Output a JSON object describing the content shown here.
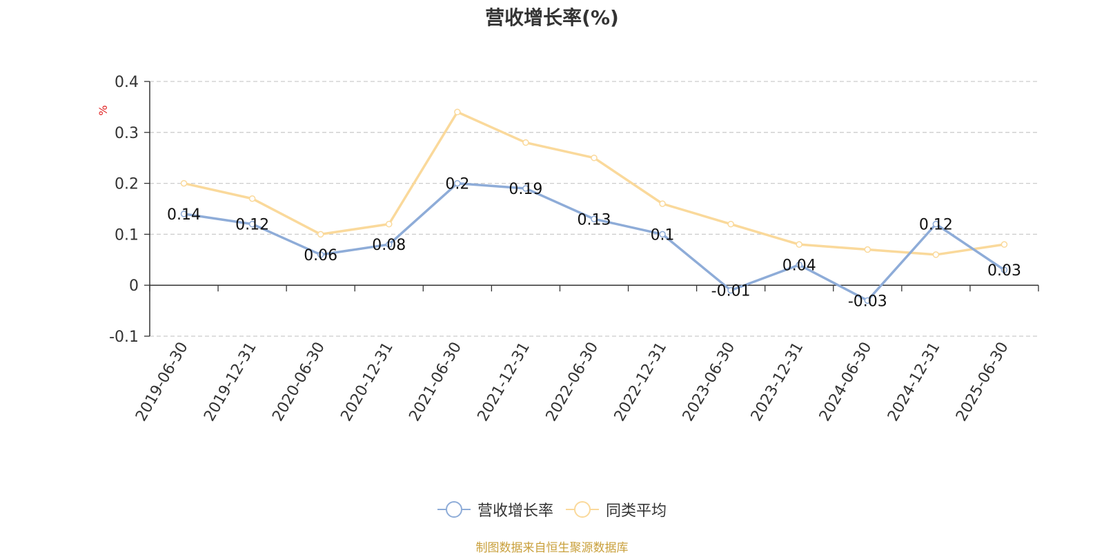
{
  "title": "营收增长率(%)",
  "source_text": "制图数据来自恒生聚源数据库",
  "colors": {
    "series_1": "#8eacd8",
    "series_2": "#fad99b",
    "axis": "#333333",
    "grid": "#cccccc",
    "unit": "#e02020",
    "source": "#c9a03c"
  },
  "chart_data": {
    "type": "line",
    "title": "营收增长率(%)",
    "ylabel": "%",
    "xlabel": "",
    "x": [
      "2019-06-30",
      "2019-12-31",
      "2020-06-30",
      "2020-12-31",
      "2021-06-30",
      "2021-12-31",
      "2022-06-30",
      "2022-12-31",
      "2023-06-30",
      "2023-12-31",
      "2024-06-30",
      "2024-12-31",
      "2025-06-30"
    ],
    "ylim": [
      -0.1,
      0.4
    ],
    "yticks": [
      "-0.1",
      "0",
      "0.1",
      "0.2",
      "0.3",
      "0.4"
    ],
    "grid": true,
    "legend_position": "bottom-center",
    "series": [
      {
        "name": "营收增长率",
        "values": [
          0.14,
          0.12,
          0.06,
          0.08,
          0.2,
          0.19,
          0.13,
          0.1,
          -0.01,
          0.04,
          -0.03,
          0.12,
          0.03
        ],
        "labels": [
          "0.14",
          "0.12",
          "0.06",
          "0.08",
          "0.2",
          "0.19",
          "0.13",
          "0.1",
          "-0.01",
          "0.04",
          "-0.03",
          "0.12",
          "0.03"
        ]
      },
      {
        "name": "同类平均",
        "values": [
          0.2,
          0.17,
          0.1,
          0.12,
          0.34,
          0.28,
          0.25,
          0.16,
          0.12,
          0.08,
          0.07,
          0.06,
          0.08
        ]
      }
    ]
  }
}
